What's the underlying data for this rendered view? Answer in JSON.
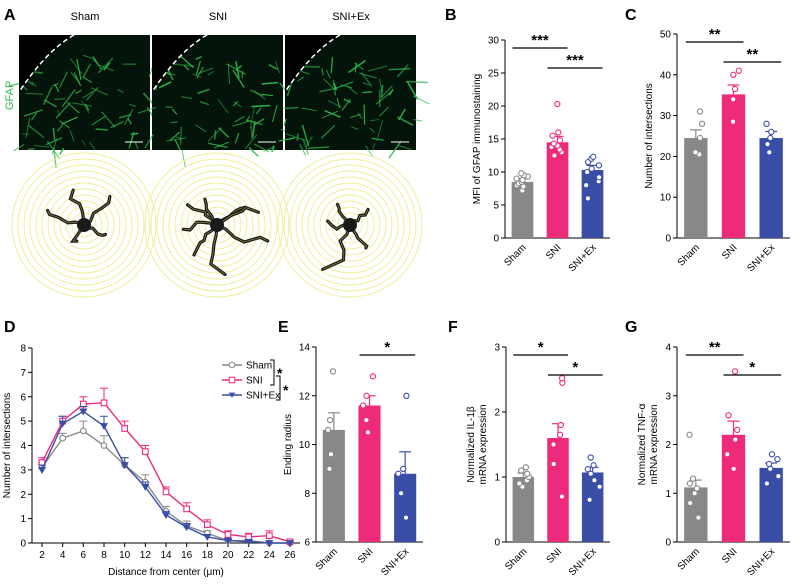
{
  "figure": {
    "panel_labels": [
      "A",
      "B",
      "C",
      "D",
      "E",
      "F",
      "G"
    ]
  },
  "panelA": {
    "column_titles": [
      "Sham",
      "SNI",
      "SNI+Ex"
    ],
    "row_label": "GFAP",
    "image_color": "#2fb84a",
    "ring_color": "#eeee99",
    "cell_color": "#1a1a1a"
  },
  "colors": {
    "sham": "#888888",
    "sni": "#ee2a7b",
    "sniex": "#3a4ea7"
  },
  "chart_data": [
    {
      "panel": "B",
      "type": "bar",
      "categories": [
        "Sham",
        "SNI",
        "SNI+Ex"
      ],
      "values": [
        8.5,
        14.5,
        10.3
      ],
      "errors": [
        0.5,
        0.9,
        0.7
      ],
      "points": [
        [
          7.2,
          7.8,
          8.0,
          8.3,
          8.5,
          8.8,
          9.0,
          9.3,
          9.5,
          9.8
        ],
        [
          12.5,
          13.0,
          13.4,
          13.8,
          14.0,
          14.3,
          14.8,
          15.5,
          16.0,
          20.3
        ],
        [
          6.0,
          8.0,
          8.6,
          9.2,
          10.0,
          10.5,
          11.0,
          11.5,
          12.0,
          12.3
        ]
      ],
      "ylabel": "MFI of GFAP immunostaining",
      "ylim": [
        0,
        30
      ],
      "yticks": [
        0,
        5,
        10,
        15,
        20,
        25,
        30
      ],
      "significance": [
        {
          "from": 0,
          "to": 1,
          "label": "***"
        },
        {
          "from": 1,
          "to": 2,
          "label": "***"
        }
      ]
    },
    {
      "panel": "C",
      "type": "bar",
      "categories": [
        "Sham",
        "SNI",
        "SNI+Ex"
      ],
      "values": [
        24.5,
        35.2,
        24.5
      ],
      "errors": [
        2.0,
        2.3,
        1.6
      ],
      "points": [
        [
          20.5,
          21.0,
          24.5,
          28.0,
          31.0
        ],
        [
          28.5,
          34.0,
          36.5,
          40.0,
          41.0
        ],
        [
          21.0,
          23.0,
          24.5,
          26.0,
          28.0
        ]
      ],
      "ylabel": "Number of intersections",
      "ylim": [
        0,
        50
      ],
      "yticks": [
        0,
        10,
        20,
        30,
        40,
        50
      ],
      "significance": [
        {
          "from": 0,
          "to": 1,
          "label": "**"
        },
        {
          "from": 1,
          "to": 2,
          "label": "**"
        }
      ]
    },
    {
      "panel": "D",
      "type": "line",
      "x": [
        2,
        4,
        6,
        8,
        10,
        12,
        14,
        16,
        18,
        20,
        22,
        24,
        26
      ],
      "series": [
        {
          "name": "Sham",
          "values": [
            3.1,
            4.3,
            4.6,
            4.0,
            3.2,
            2.5,
            1.3,
            0.7,
            0.4,
            0.1,
            0.1,
            0.0,
            0.0
          ],
          "errors": [
            0.2,
            0.2,
            0.4,
            0.4,
            0.3,
            0.3,
            0.2,
            0.2,
            0.1,
            0.05,
            0.05,
            0.0,
            0.0
          ]
        },
        {
          "name": "SNI",
          "values": [
            3.3,
            5.0,
            5.7,
            5.75,
            4.7,
            3.75,
            2.1,
            1.4,
            0.75,
            0.35,
            0.25,
            0.3,
            0.05
          ],
          "errors": [
            0.2,
            0.2,
            0.3,
            0.6,
            0.3,
            0.25,
            0.2,
            0.25,
            0.2,
            0.15,
            0.15,
            0.2,
            0.05
          ],
          "marker": "square"
        },
        {
          "name": "SNI+Ex",
          "values": [
            3.0,
            4.9,
            5.4,
            4.8,
            3.2,
            2.3,
            1.15,
            0.65,
            0.25,
            0.1,
            0.05,
            0.0,
            0.0
          ],
          "errors": [
            0.2,
            0.3,
            0.2,
            0.4,
            0.3,
            0.2,
            0.15,
            0.15,
            0.1,
            0.05,
            0.05,
            0.0,
            0.0
          ],
          "marker": "triangle"
        }
      ],
      "xlabel": "Distance from center (μm)",
      "ylabel": "Number of intersections",
      "ylim": [
        0,
        8
      ],
      "yticks": [
        0,
        1,
        2,
        3,
        4,
        5,
        6,
        7,
        8
      ],
      "legend": "top-right",
      "significance_marks": [
        "*",
        "*"
      ]
    },
    {
      "panel": "E",
      "type": "bar",
      "categories": [
        "Sham",
        "SNI",
        "SNI+Ex"
      ],
      "values": [
        10.6,
        11.6,
        8.8
      ],
      "errors": [
        0.7,
        0.4,
        0.9
      ],
      "points": [
        [
          9.0,
          9.6,
          10.6,
          11.0,
          13.0
        ],
        [
          10.5,
          11.0,
          11.6,
          12.0,
          12.8
        ],
        [
          7.0,
          8.0,
          8.8,
          9.0,
          12.0
        ]
      ],
      "ylabel": "Ending radius",
      "ylim": [
        6,
        14
      ],
      "yticks": [
        6,
        8,
        10,
        12,
        14
      ],
      "significance": [
        {
          "from": 1,
          "to": 2,
          "label": "*"
        }
      ]
    },
    {
      "panel": "F",
      "type": "bar",
      "categories": [
        "Sham",
        "SNI",
        "SNI+Ex"
      ],
      "values": [
        1.0,
        1.6,
        1.07
      ],
      "errors": [
        0.06,
        0.22,
        0.08
      ],
      "points": [
        [
          0.85,
          0.9,
          0.95,
          1.0,
          1.05,
          1.1,
          1.15
        ],
        [
          0.7,
          1.2,
          1.5,
          1.65,
          1.8,
          2.45,
          2.52
        ],
        [
          0.65,
          0.85,
          0.95,
          1.05,
          1.12,
          1.18,
          1.3
        ]
      ],
      "ylabel": "Normalized IL-1β mRNA expression",
      "ylim": [
        0,
        3
      ],
      "yticks": [
        0,
        1,
        2,
        3
      ],
      "significance": [
        {
          "from": 0,
          "to": 1,
          "label": "*"
        },
        {
          "from": 1,
          "to": 2,
          "label": "*"
        }
      ]
    },
    {
      "panel": "G",
      "type": "bar",
      "categories": [
        "Sham",
        "SNI",
        "SNI+Ex"
      ],
      "values": [
        1.12,
        2.2,
        1.52
      ],
      "errors": [
        0.15,
        0.28,
        0.1
      ],
      "points": [
        [
          0.5,
          0.8,
          1.0,
          1.1,
          1.2,
          1.3,
          2.2
        ],
        [
          1.5,
          1.8,
          2.1,
          2.3,
          2.6,
          3.5
        ],
        [
          1.2,
          1.35,
          1.5,
          1.6,
          1.7,
          1.8
        ]
      ],
      "ylabel": "Normalized TNF-α mRNA expression",
      "ylim": [
        0,
        4
      ],
      "yticks": [
        0,
        1,
        2,
        3,
        4
      ],
      "significance": [
        {
          "from": 0,
          "to": 1,
          "label": "**"
        },
        {
          "from": 1,
          "to": 2,
          "label": "*"
        }
      ]
    }
  ]
}
